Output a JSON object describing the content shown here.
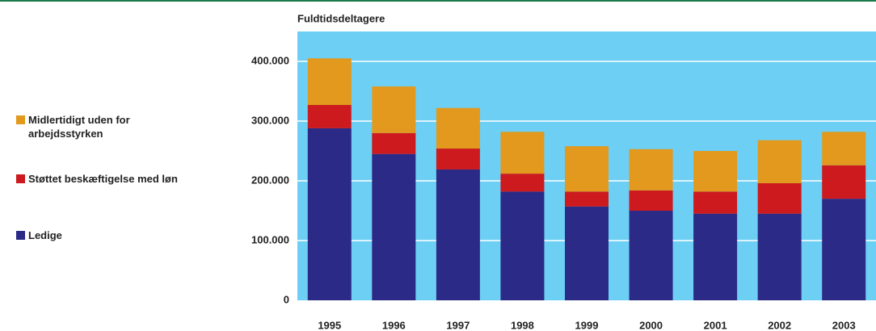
{
  "chart_data": {
    "type": "stacked_bar",
    "title": "Fuldtidsdeltagere",
    "categories": [
      "1995",
      "1996",
      "1997",
      "1998",
      "1999",
      "2000",
      "2001",
      "2002",
      "2003"
    ],
    "series": [
      {
        "name": "Ledige",
        "color": "#2b2a86",
        "values": [
          288000,
          245000,
          219000,
          182000,
          157000,
          150000,
          145000,
          145000,
          170000
        ]
      },
      {
        "name": "Støttet beskæftigelse med løn",
        "color": "#cc1a1e",
        "values": [
          39000,
          35000,
          35000,
          30000,
          25000,
          34000,
          37000,
          51000,
          56000
        ]
      },
      {
        "name": "Midlertidigt uden for arbejdsstyrken",
        "color": "#e2991d",
        "values": [
          78000,
          78000,
          68000,
          70000,
          76000,
          69000,
          68000,
          72000,
          56000
        ]
      }
    ],
    "ylim": [
      0,
      450000
    ],
    "yticks": [
      0,
      {
        "value": 100000,
        "label": "100.000"
      },
      {
        "value": 200000,
        "label": "200.000"
      },
      {
        "value": 300000,
        "label": "300.000"
      },
      {
        "value": 400000,
        "label": "400.000"
      }
    ],
    "grid": true,
    "background": "#6dcff3"
  }
}
